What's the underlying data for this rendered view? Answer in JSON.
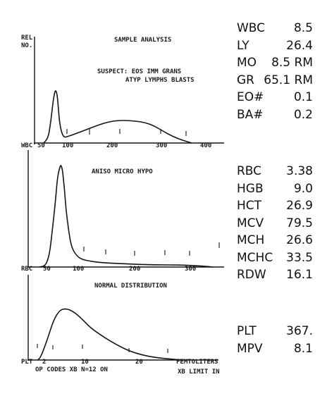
{
  "header": {
    "rel_no_line1": "REL",
    "rel_no_line2": "NO.",
    "title": "SAMPLE ANALYSIS",
    "suspect_line1": "SUSPECT: EOS IMM GRANS",
    "suspect_line2": "ATYP LYMPHS BLASTS"
  },
  "panels": {
    "wbc": {
      "axis_name": "WBC",
      "tick_labels": [
        "50",
        "100",
        "200",
        "300",
        "400"
      ]
    },
    "rbc": {
      "flag_text": "ANISO MICRO HYPO",
      "axis_name": "RBC",
      "tick_labels": [
        "50",
        "100",
        "200",
        "300"
      ]
    },
    "plt": {
      "flag_text": "NORMAL DISTRIBUTION",
      "axis_name": "PLT",
      "tick_labels": [
        "2",
        "10",
        "20"
      ],
      "units_label": "FEMTOLITERS",
      "limit_label": "XB LIMIT IN"
    }
  },
  "footer": {
    "op_codes": "OP CODES XB N=12  ON"
  },
  "results": {
    "wbc_group": [
      {
        "label": "WBC",
        "value": "8.5"
      },
      {
        "label": "LY",
        "value": "26.4"
      },
      {
        "label": "MO",
        "value": "8.5 RM"
      },
      {
        "label": "GR",
        "value": "65.1 RM"
      },
      {
        "label": "EO#",
        "value": "0.1"
      },
      {
        "label": "BA#",
        "value": "0.2"
      }
    ],
    "rbc_group": [
      {
        "label": "RBC",
        "value": "3.38"
      },
      {
        "label": "HGB",
        "value": "9.0"
      },
      {
        "label": "HCT",
        "value": "26.9"
      },
      {
        "label": "MCV",
        "value": "79.5"
      },
      {
        "label": "MCH",
        "value": "26.6"
      },
      {
        "label": "MCHC",
        "value": "33.5"
      },
      {
        "label": "RDW",
        "value": "16.1"
      }
    ],
    "plt_group": [
      {
        "label": "PLT",
        "value": "367."
      },
      {
        "label": "MPV",
        "value": "8.1"
      }
    ]
  },
  "chart_data": [
    {
      "type": "line",
      "x": [
        40,
        50,
        55,
        60,
        63,
        65,
        68,
        70,
        72,
        75,
        80,
        85,
        90,
        100,
        120,
        140,
        160,
        180,
        200,
        220,
        240,
        260,
        280,
        300,
        320,
        340,
        350,
        360
      ],
      "series": [
        {
          "values": [
            0,
            8,
            30,
            58,
            70,
            75,
            72,
            62,
            45,
            25,
            12,
            8,
            9,
            11,
            16,
            21,
            26,
            30,
            32,
            32,
            31,
            29,
            24,
            16,
            9,
            4,
            2,
            0
          ]
        }
      ],
      "xlabel": "WBC",
      "xticks": [
        "50",
        "100",
        "200",
        "300",
        "400"
      ],
      "xlim": [
        20,
        430
      ],
      "ylim": [
        0,
        100
      ],
      "grid": false
    },
    {
      "type": "line",
      "x": [
        40,
        50,
        55,
        60,
        65,
        70,
        73,
        75,
        78,
        80,
        83,
        85,
        88,
        90,
        95,
        100,
        110,
        120,
        140,
        160,
        200,
        250,
        300,
        340,
        360
      ],
      "series": [
        {
          "values": [
            0,
            1,
            5,
            15,
            38,
            62,
            80,
            88,
            94,
            97,
            92,
            82,
            65,
            52,
            32,
            18,
            10,
            7,
            5,
            4,
            3,
            2,
            2,
            1,
            0
          ]
        }
      ],
      "xlabel": "RBC",
      "xticks": [
        "50",
        "100",
        "200",
        "300"
      ],
      "xlim": [
        20,
        380
      ],
      "ylim": [
        0,
        100
      ],
      "grid": false
    },
    {
      "type": "line",
      "x": [
        1.5,
        2,
        3,
        4,
        5,
        6,
        7,
        8,
        9,
        10,
        12,
        14,
        16,
        18,
        20,
        22,
        24
      ],
      "series": [
        {
          "values": [
            0,
            5,
            32,
            64,
            80,
            82,
            78,
            70,
            60,
            50,
            36,
            24,
            14,
            8,
            4,
            2,
            0
          ]
        }
      ],
      "xlabel": "PLT",
      "xticks": [
        "2",
        "10",
        "20"
      ],
      "xlim": [
        0,
        30
      ],
      "ylim": [
        0,
        100
      ],
      "grid": false
    }
  ]
}
